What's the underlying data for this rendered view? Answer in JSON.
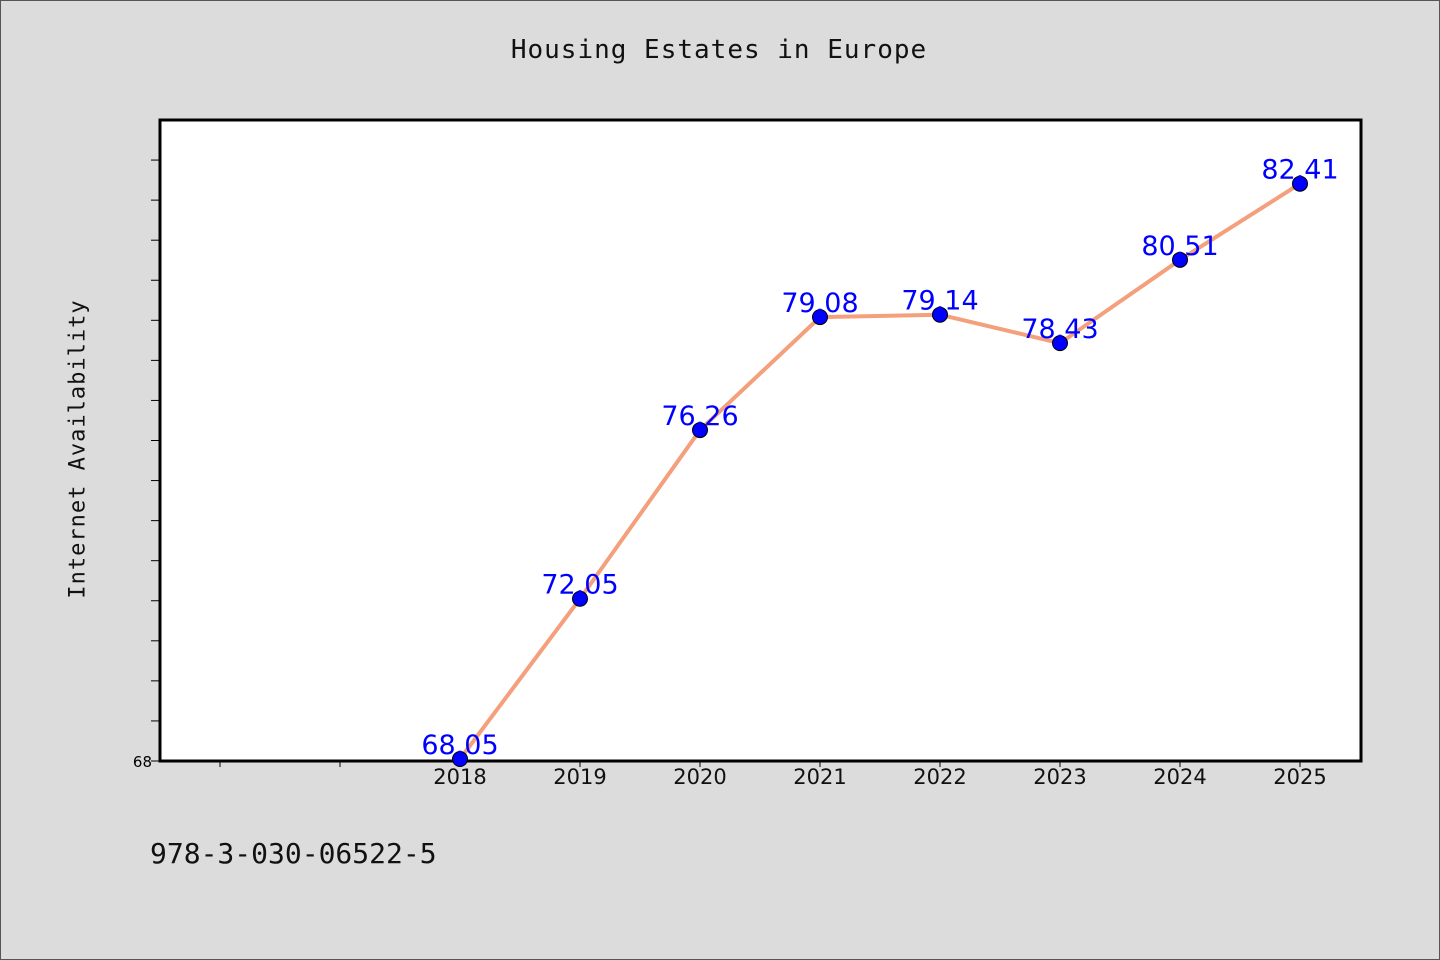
{
  "chart_data": {
    "type": "line",
    "title": "Housing Estates in Europe",
    "xlabel": "",
    "ylabel": "Internet Availability",
    "categories": [
      "2018",
      "2019",
      "2020",
      "2021",
      "2022",
      "2023",
      "2024",
      "2025"
    ],
    "series": [
      {
        "values": [
          68.05,
          72.05,
          76.26,
          79.08,
          79.14,
          78.43,
          80.51,
          82.41
        ],
        "labels": [
          "68.05",
          "72.05",
          "76.26",
          "79.08",
          "79.14",
          "78.43",
          "80.51",
          "82.41"
        ]
      }
    ],
    "y_tick_label": "68",
    "ylim": [
      68,
      84
    ],
    "grid": false,
    "line_color": "#f4a07c",
    "marker_color": "#0000ff",
    "label_color": "#0000ff"
  },
  "footer": {
    "id_text": "978-3-030-06522-5"
  }
}
